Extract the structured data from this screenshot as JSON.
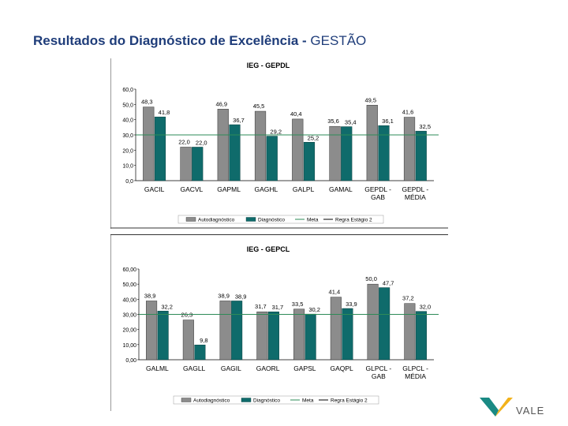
{
  "slide": {
    "title_bold": "Resultados do Diagnóstico de Excelência - ",
    "title_regular": "GESTÃO"
  },
  "logo": {
    "text": "VALE",
    "icon": "vale-v-logo"
  },
  "colors": {
    "autodiagnostico": "#8c8c8c",
    "diagnostico": "#0f6b6b",
    "meta": "#2e8b57",
    "regra": "#000000",
    "title": "#1f3d7a"
  },
  "chart_data": [
    {
      "type": "bar",
      "title": "IEG - GEPDL",
      "categories": [
        "GACIL",
        "GACVL",
        "GAPML",
        "GAGHL",
        "GALPL",
        "GAMAL",
        "GEPDL - GAB",
        "GEPDL - MÉDIA"
      ],
      "series": [
        {
          "name": "Autodiagnóstico",
          "values": [
            48.3,
            22.0,
            46.9,
            45.5,
            40.4,
            35.6,
            49.5,
            41.6
          ],
          "labels": [
            "48,3",
            "22,0",
            "46,9",
            "45,5",
            "40,4",
            "35,6",
            "49,5",
            "41,6"
          ]
        },
        {
          "name": "Diagnóstico",
          "values": [
            41.8,
            22.0,
            36.7,
            29.2,
            25.2,
            35.4,
            36.1,
            32.5
          ],
          "labels": [
            "41,8",
            "22,0",
            "36,7",
            "29,2",
            "25,2",
            "35,4",
            "36,1",
            "32,5"
          ]
        }
      ],
      "meta_value": 30.0,
      "legend_items": [
        "Autodiagnóstico",
        "Diagnóstico",
        "Meta",
        "Regra Estágio 2"
      ],
      "ylim": [
        0,
        60
      ],
      "yticks": [
        0,
        10,
        20,
        30,
        40,
        50,
        60
      ],
      "ytick_labels": [
        "0,0",
        "10,0",
        "20,0",
        "30,0",
        "40,0",
        "50,0",
        "60,0"
      ],
      "legend": "bottom"
    },
    {
      "type": "bar",
      "title": "IEG - GEPCL",
      "categories": [
        "GALML",
        "GAGLL",
        "GAGIL",
        "GAORL",
        "GAPSL",
        "GAQPL",
        "GLPCL - GAB",
        "GLPCL - MÉDIA"
      ],
      "series": [
        {
          "name": "Autodiagnóstico",
          "values": [
            38.9,
            26.3,
            38.9,
            31.7,
            33.5,
            41.4,
            50.0,
            37.2
          ],
          "labels": [
            "38,9",
            "26,3",
            "38,9",
            "31,7",
            "33,5",
            "41,4",
            "50,0",
            "37,2"
          ]
        },
        {
          "name": "Diagnóstico",
          "values": [
            32.2,
            9.8,
            38.9,
            31.7,
            30.2,
            33.9,
            47.7,
            32.0
          ],
          "labels": [
            "32,2",
            "9,8",
            "38,9",
            "31,7",
            "30,2",
            "33,9",
            "47,7",
            "32,0"
          ]
        }
      ],
      "meta_value": 30.0,
      "legend_items": [
        "Autodiagnóstico",
        "Diagnóstico",
        "Meta",
        "Regra Estágio 2"
      ],
      "ylim": [
        0,
        60
      ],
      "yticks": [
        0,
        10,
        20,
        30,
        40,
        50,
        60
      ],
      "ytick_labels": [
        "0,00",
        "10,00",
        "20,00",
        "30,00",
        "40,00",
        "50,00",
        "60,00"
      ],
      "legend": "bottom"
    }
  ]
}
